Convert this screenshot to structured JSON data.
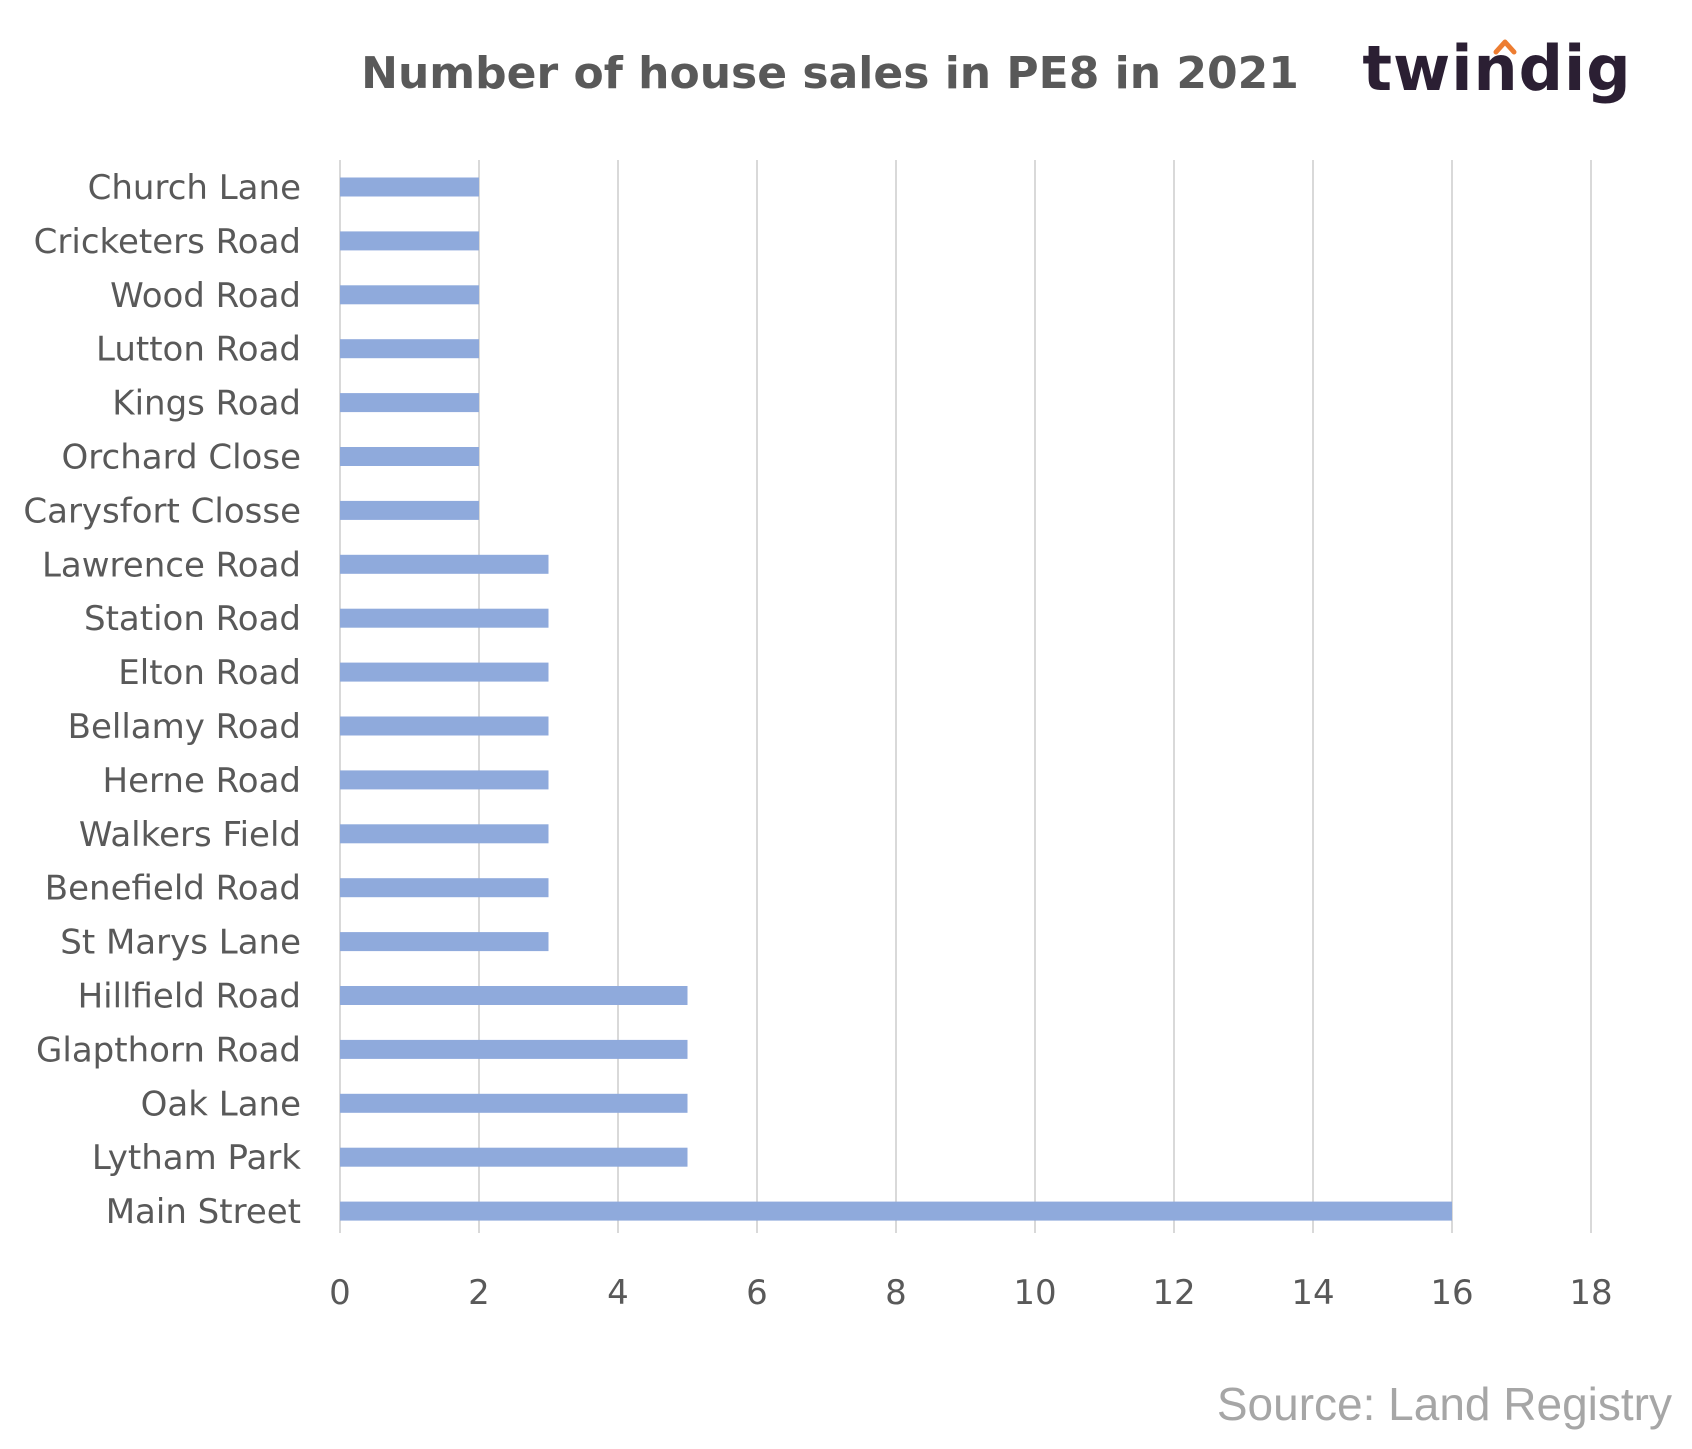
{
  "brand": {
    "logo_text": "twindig",
    "logo_accent_color": "#ed7d31",
    "logo_color": "#2b1f33"
  },
  "source": "Source: Land Registry",
  "chart_data": {
    "type": "bar",
    "orientation": "horizontal",
    "title": "Number of house sales in PE8 in 2021",
    "xlabel": "",
    "ylabel": "",
    "categories": [
      "Church Lane",
      "Cricketers Road",
      "Wood Road",
      "Lutton Road",
      "Kings Road",
      "Orchard Close",
      "Carysfort Closse",
      "Lawrence Road",
      "Station Road",
      "Elton Road",
      "Bellamy Road",
      "Herne Road",
      "Walkers Field",
      "Benefield Road",
      "St Marys Lane",
      "Hillfield Road",
      "Glapthorn Road",
      "Oak Lane",
      "Lytham Park",
      "Main Street"
    ],
    "values": [
      2,
      2,
      2,
      2,
      2,
      2,
      2,
      3,
      3,
      3,
      3,
      3,
      3,
      3,
      3,
      5,
      5,
      5,
      5,
      16
    ],
    "xlim": [
      0,
      18
    ],
    "xticks": [
      0,
      2,
      4,
      6,
      8,
      10,
      12,
      14,
      16,
      18
    ],
    "grid": "vertical",
    "legend": "none",
    "bar_color": "#8faadc",
    "grid_color": "#d9d9d9",
    "text_color": "#595959"
  }
}
